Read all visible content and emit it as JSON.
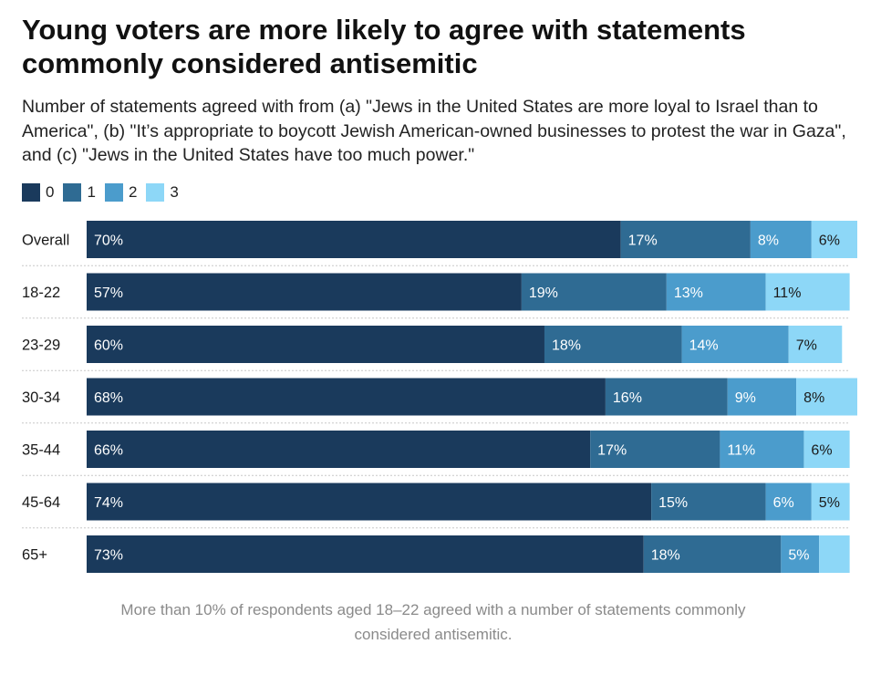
{
  "chart_data": {
    "type": "bar",
    "orientation": "horizontal-stacked",
    "title": "Young voters are more likely to agree with statements commonly considered antisemitic",
    "subtitle": "Number of statements agreed with from (a) \"Jews in the United States are more loyal to Israel than to America\", (b) \"It’s appropriate to boycott Jewish American-owned businesses to protest the war in Gaza\", and (c) \"Jews in the United States have too much power.\"",
    "categories": [
      "Overall",
      "18-22",
      "23-29",
      "30-34",
      "35-44",
      "45-64",
      "65+"
    ],
    "series": [
      {
        "name": "0",
        "color": "#1a3a5c",
        "values": [
          70,
          57,
          60,
          68,
          66,
          74,
          73
        ]
      },
      {
        "name": "1",
        "color": "#2f6b93",
        "values": [
          17,
          19,
          18,
          16,
          17,
          15,
          18
        ]
      },
      {
        "name": "2",
        "color": "#4b9ccc",
        "values": [
          8,
          13,
          14,
          9,
          11,
          6,
          5
        ]
      },
      {
        "name": "3",
        "color": "#8dd7f7",
        "values": [
          6,
          11,
          7,
          8,
          6,
          5,
          4
        ]
      }
    ],
    "data_labels": [
      [
        "70%",
        "17%",
        "8%",
        "6%"
      ],
      [
        "57%",
        "19%",
        "13%",
        "11%"
      ],
      [
        "60%",
        "18%",
        "14%",
        "7%"
      ],
      [
        "68%",
        "16%",
        "9%",
        "8%"
      ],
      [
        "66%",
        "17%",
        "11%",
        "6%"
      ],
      [
        "74%",
        "15%",
        "6%",
        "5%"
      ],
      [
        "73%",
        "18%",
        "5%",
        ""
      ]
    ],
    "xlim": [
      0,
      101
    ]
  },
  "caption": "More than 10% of respondents aged 18–22 agreed with a number of statements commonly considered antisemitic."
}
